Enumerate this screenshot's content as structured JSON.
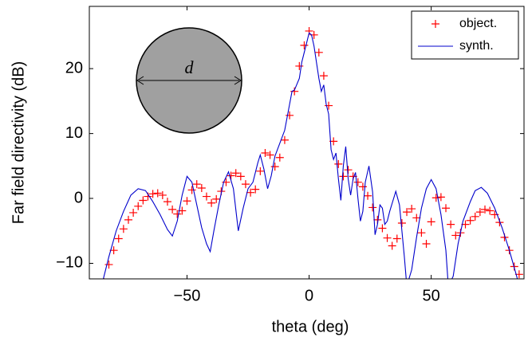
{
  "chart_data": {
    "type": "line",
    "xlabel": "theta (deg)",
    "ylabel": "Far field directivity (dB)",
    "xlim": [
      -90,
      88
    ],
    "ylim": [
      -12.4,
      29.6
    ],
    "xticks": [
      {
        "value": -50,
        "label": "−50"
      },
      0,
      50
    ],
    "yticks": [
      {
        "value": -10,
        "label": "−10"
      },
      0,
      10,
      20
    ],
    "legend": "top right",
    "annotations": [
      {
        "text": "d"
      }
    ],
    "series": [
      {
        "name": "object.",
        "color": "#ff0000",
        "mode": "markers",
        "x": [
          -84,
          -82,
          -80,
          -78,
          -76,
          -74,
          -72,
          -70,
          -68,
          -66,
          -64,
          -62,
          -60,
          -58,
          -56,
          -54,
          -52,
          -50,
          -48,
          -46,
          -44,
          -42,
          -40,
          -38,
          -36,
          -34,
          -32,
          -30,
          -28,
          -26,
          -24,
          -22,
          -20,
          -18,
          -16,
          -14,
          -12,
          -10,
          -8,
          -6,
          -4,
          -2,
          0,
          2,
          4,
          6,
          8,
          10,
          12,
          14,
          16,
          18,
          20,
          22,
          24,
          26,
          28,
          30,
          32,
          34,
          36,
          38,
          40,
          42,
          44,
          46,
          48,
          50,
          52,
          54,
          56,
          58,
          60,
          62,
          64,
          66,
          68,
          70,
          72,
          74,
          76,
          78,
          80,
          82,
          84,
          86
        ],
        "values": [
          -12.9,
          -10.2,
          -8,
          -6.2,
          -4.7,
          -3.3,
          -2.2,
          -1.2,
          -0.3,
          0.3,
          0.7,
          0.8,
          0.5,
          -0.5,
          -1.7,
          -2.4,
          -1.9,
          -0.4,
          1.3,
          2.2,
          1.6,
          0.3,
          -0.7,
          -0.1,
          1.1,
          2.5,
          3.5,
          3.9,
          3.4,
          2.2,
          0.9,
          1.4,
          4.2,
          7.0,
          6.7,
          4.9,
          6.3,
          9.0,
          12.8,
          16.5,
          20.4,
          23.6,
          25.8,
          25.2,
          22.5,
          18.9,
          14.3,
          8.8,
          5.3,
          3.4,
          4.4,
          3.4,
          2.5,
          1.8,
          0.4,
          -1.4,
          -3.3,
          -4.6,
          -6.1,
          -7.3,
          -6.2,
          -3.8,
          -2.1,
          -1.6,
          -3.0,
          -5.3,
          -7.0,
          -3.6,
          0.1,
          0.2,
          -1.5,
          -4.0,
          -5.7,
          -5.3,
          -4.0,
          -3.4,
          -2.8,
          -2.1,
          -1.7,
          -1.9,
          -2.5,
          -3.7,
          -6.0,
          -8.0,
          -10.5,
          -11.7
        ]
      },
      {
        "name": "synth.",
        "color": "#0000cc",
        "mode": "line",
        "x": [
          -85,
          -82,
          -79,
          -76,
          -73,
          -70,
          -67,
          -64,
          -61,
          -58,
          -56,
          -54,
          -52,
          -50,
          -48,
          -46,
          -44,
          -42,
          -40.5,
          -39,
          -37,
          -35,
          -33,
          -31,
          -29,
          -27,
          -25,
          -23,
          -21,
          -20,
          -18.5,
          -17,
          -15.5,
          -14,
          -12,
          -10,
          -8,
          -7,
          -6,
          -4,
          -3,
          -2,
          -1,
          0,
          1,
          2,
          3,
          4,
          5,
          6,
          7,
          8,
          9,
          10,
          11,
          12,
          13,
          14,
          15,
          16,
          17,
          18,
          19,
          20,
          21,
          22,
          23,
          24.5,
          26,
          27,
          28,
          29,
          30,
          31,
          32,
          33,
          35.5,
          37,
          38,
          39,
          40,
          42,
          44,
          46,
          48,
          50,
          52,
          54,
          56,
          57,
          59,
          61,
          63,
          66,
          68,
          70.5,
          73,
          76,
          79,
          82,
          85,
          86
        ],
        "values": [
          -13.5,
          -9,
          -5,
          -2,
          0.5,
          1.5,
          1.2,
          -0.5,
          -2.5,
          -4.8,
          -5.8,
          -3.5,
          0.5,
          3.4,
          2.5,
          -1,
          -4.5,
          -7,
          -8.2,
          -5,
          -1,
          2.5,
          4.1,
          1.5,
          -5,
          -1.5,
          1.5,
          2.5,
          5.5,
          6.7,
          4.5,
          1.5,
          3.5,
          6.5,
          8.5,
          10.5,
          14.5,
          16.5,
          16.7,
          18.5,
          21,
          22.5,
          24,
          25.5,
          25.2,
          23.5,
          21,
          18.5,
          16.5,
          17.5,
          14.5,
          13,
          7.5,
          6,
          7,
          3,
          -0.3,
          5,
          8,
          3,
          0.5,
          3,
          4,
          0,
          -3.5,
          -2,
          2.5,
          5,
          1,
          -5.6,
          -4,
          -1,
          -1.5,
          -4,
          -3.5,
          -2,
          1.1,
          -1,
          -5,
          -9,
          -13.5,
          -11,
          -6,
          -1.5,
          1.5,
          2.9,
          1.5,
          -2.5,
          -8,
          -13.5,
          -12,
          -7,
          -3.5,
          -0.5,
          1.2,
          1.7,
          0.8,
          -1.5,
          -4.5,
          -8,
          -12,
          -13.5
        ]
      }
    ]
  }
}
